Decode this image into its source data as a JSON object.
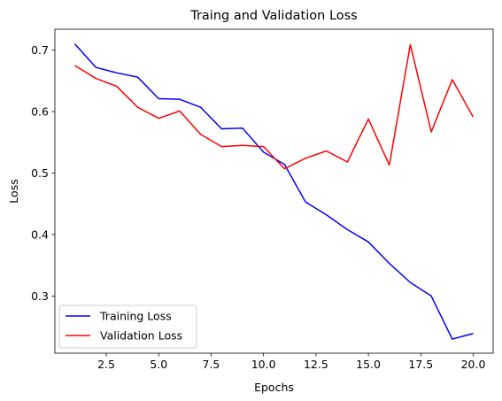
{
  "chart_data": {
    "type": "line",
    "title": "Traing and Validation Loss",
    "xlabel": "Epochs",
    "ylabel": "Loss",
    "xlim": [
      0.05,
      20.95
    ],
    "ylim": [
      0.207,
      0.734
    ],
    "xticks": [
      2.5,
      5.0,
      7.5,
      10.0,
      12.5,
      15.0,
      17.5,
      20.0
    ],
    "xtick_labels": [
      "2.5",
      "5.0",
      "7.5",
      "10.0",
      "12.5",
      "15.0",
      "17.5",
      "20.0"
    ],
    "yticks": [
      0.3,
      0.4,
      0.5,
      0.6,
      0.7
    ],
    "ytick_labels": [
      "0.3",
      "0.4",
      "0.5",
      "0.6",
      "0.7"
    ],
    "grid": false,
    "legend_position": "lower-left",
    "x": [
      1,
      2,
      3,
      4,
      5,
      6,
      7,
      8,
      9,
      10,
      11,
      12,
      13,
      14,
      15,
      16,
      17,
      18,
      19,
      20
    ],
    "series": [
      {
        "name": "Training Loss",
        "color": "#0000ff",
        "values": [
          0.71,
          0.672,
          0.663,
          0.656,
          0.621,
          0.62,
          0.607,
          0.572,
          0.573,
          0.534,
          0.514,
          0.453,
          0.432,
          0.408,
          0.388,
          0.353,
          0.322,
          0.3,
          0.23,
          0.239
        ]
      },
      {
        "name": "Validation Loss",
        "color": "#ff0000",
        "values": [
          0.675,
          0.654,
          0.641,
          0.607,
          0.589,
          0.601,
          0.563,
          0.543,
          0.545,
          0.543,
          0.507,
          0.524,
          0.536,
          0.518,
          0.588,
          0.513,
          0.709,
          0.567,
          0.652,
          0.591
        ]
      }
    ]
  }
}
